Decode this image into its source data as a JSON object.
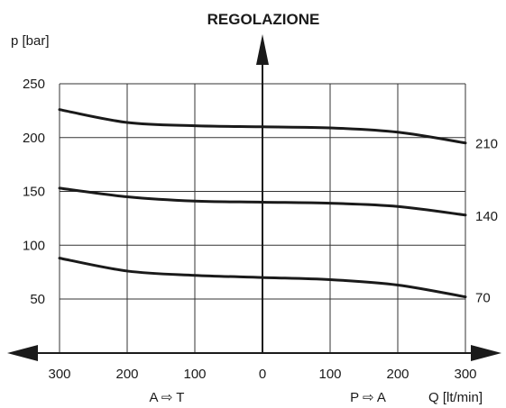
{
  "chart_data": {
    "type": "line",
    "title": "REGOLAZIONE",
    "ylabel": "p [bar]",
    "xlabel": "Q [lt/min]",
    "left_direction_label": "A ⇨ T",
    "right_direction_label": "P ⇨ A",
    "x": [
      -300,
      -200,
      -100,
      0,
      100,
      200,
      300
    ],
    "x_tick_labels": [
      "300",
      "200",
      "100",
      "0",
      "100",
      "200",
      "300"
    ],
    "y_ticks": [
      50,
      100,
      150,
      200,
      250
    ],
    "y_tick_labels": [
      "50",
      "100",
      "150",
      "200",
      "250"
    ],
    "xlim": [
      -300,
      300
    ],
    "ylim": [
      0,
      250
    ],
    "grid": true,
    "series": [
      {
        "name": "210",
        "values": [
          226,
          214,
          211,
          210,
          209,
          205,
          195
        ]
      },
      {
        "name": "140",
        "values": [
          153,
          145,
          141,
          140,
          139,
          136,
          128
        ]
      },
      {
        "name": "70",
        "values": [
          88,
          76,
          72,
          70,
          68,
          63,
          52
        ]
      }
    ]
  }
}
